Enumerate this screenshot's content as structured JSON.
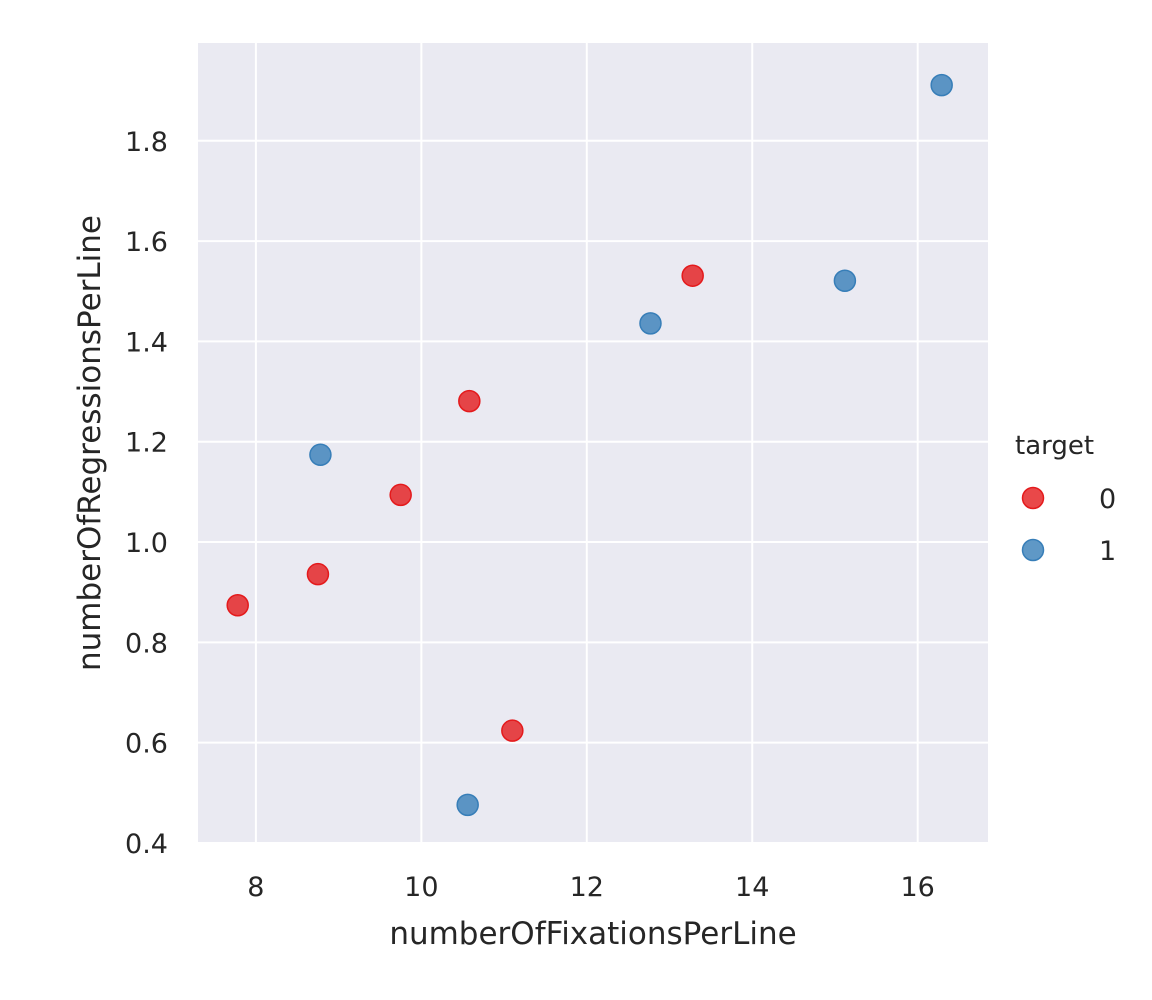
{
  "chart_data": {
    "type": "scatter",
    "title": "",
    "xlabel": "numberOfFixationsPerLine",
    "ylabel": "numberOfRegressionsPerLine",
    "xlim": [
      7.3,
      16.85
    ],
    "ylim": [
      0.4,
      1.995
    ],
    "xticks": [
      8,
      10,
      12,
      14,
      16
    ],
    "yticks": [
      0.4,
      0.6,
      0.8,
      1.0,
      1.2,
      1.4,
      1.6,
      1.8
    ],
    "xtick_labels": [
      "8",
      "10",
      "12",
      "14",
      "16"
    ],
    "ytick_labels": [
      "0.4",
      "0.6",
      "0.8",
      "1.0",
      "1.2",
      "1.4",
      "1.6",
      "1.8"
    ],
    "grid": true,
    "legend": {
      "title": "target",
      "placement": "right"
    },
    "series": [
      {
        "name": "0",
        "color": "#e41a1c",
        "points": [
          {
            "x": 7.78,
            "y": 0.874
          },
          {
            "x": 8.75,
            "y": 0.936
          },
          {
            "x": 9.75,
            "y": 1.094
          },
          {
            "x": 10.58,
            "y": 1.281
          },
          {
            "x": 11.1,
            "y": 0.624
          },
          {
            "x": 13.28,
            "y": 1.531
          }
        ]
      },
      {
        "name": "1",
        "color": "#377eb8",
        "points": [
          {
            "x": 8.78,
            "y": 1.174
          },
          {
            "x": 10.56,
            "y": 0.476
          },
          {
            "x": 12.77,
            "y": 1.436
          },
          {
            "x": 15.12,
            "y": 1.521
          },
          {
            "x": 16.29,
            "y": 1.911
          }
        ]
      }
    ]
  }
}
